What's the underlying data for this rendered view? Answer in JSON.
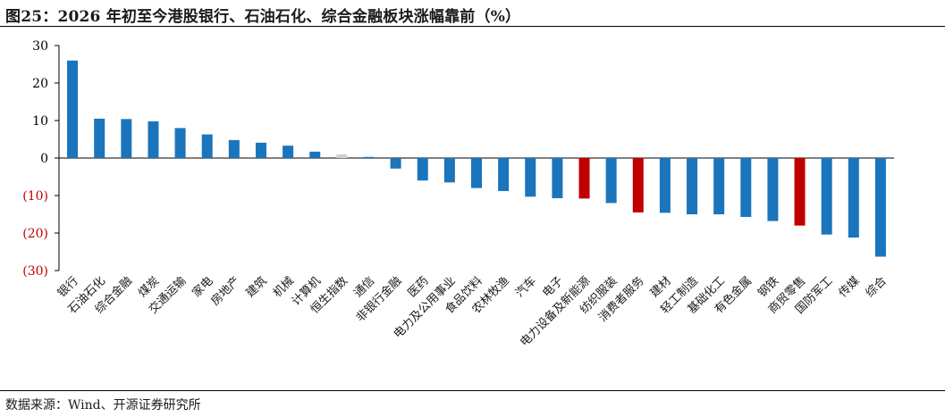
{
  "title": "图25：2026 年初至今港股银行、石油石化、综合金融板块涨幅靠前（%）",
  "source": "数据来源：Wind、开源证券研究所",
  "colors": {
    "bar_default": "#1A75BC",
    "bar_highlight": "#C00000",
    "bar_muted": "#D0D0D0",
    "tick_positive": "#000000",
    "tick_negative": "#C00000"
  },
  "chart_data": {
    "type": "bar",
    "title": "2026 年初至今港股银行、石油石化、综合金融板块涨幅靠前（%）",
    "xlabel": "",
    "ylabel": "",
    "ylim": [
      -30,
      30
    ],
    "yticks": [
      30,
      20,
      10,
      0,
      -10,
      -20,
      -30
    ],
    "ytick_labels": [
      "30",
      "20",
      "10",
      "0",
      "(10)",
      "(20)",
      "(30)"
    ],
    "grid": false,
    "legend": "none",
    "categories": [
      "银行",
      "石油石化",
      "综合金融",
      "煤炭",
      "交通运输",
      "家电",
      "房地产",
      "建筑",
      "机械",
      "计算机",
      "恒生指数",
      "通信",
      "非银行金融",
      "医药",
      "电力及公用事业",
      "食品饮料",
      "农林牧渔",
      "汽车",
      "电子",
      "电力设备及新能源",
      "纺织服装",
      "消费者服务",
      "建材",
      "轻工制造",
      "基础化工",
      "有色金属",
      "钢铁",
      "商贸零售",
      "国防军工",
      "传媒",
      "综合"
    ],
    "values": [
      26.0,
      10.5,
      10.4,
      9.8,
      8.0,
      6.3,
      4.8,
      4.1,
      3.3,
      1.7,
      1.0,
      0.3,
      -2.8,
      -6.0,
      -6.5,
      -8.0,
      -8.8,
      -10.3,
      -10.7,
      -10.8,
      -12.0,
      -14.5,
      -14.6,
      -15.0,
      -15.0,
      -15.7,
      -16.8,
      -18.0,
      -20.4,
      -21.2,
      -26.3
    ],
    "highlight": [
      "default",
      "default",
      "default",
      "default",
      "default",
      "default",
      "default",
      "default",
      "default",
      "default",
      "muted",
      "default",
      "default",
      "default",
      "default",
      "default",
      "default",
      "default",
      "default",
      "highlight",
      "default",
      "highlight",
      "default",
      "default",
      "default",
      "default",
      "default",
      "highlight",
      "default",
      "default",
      "default"
    ]
  }
}
